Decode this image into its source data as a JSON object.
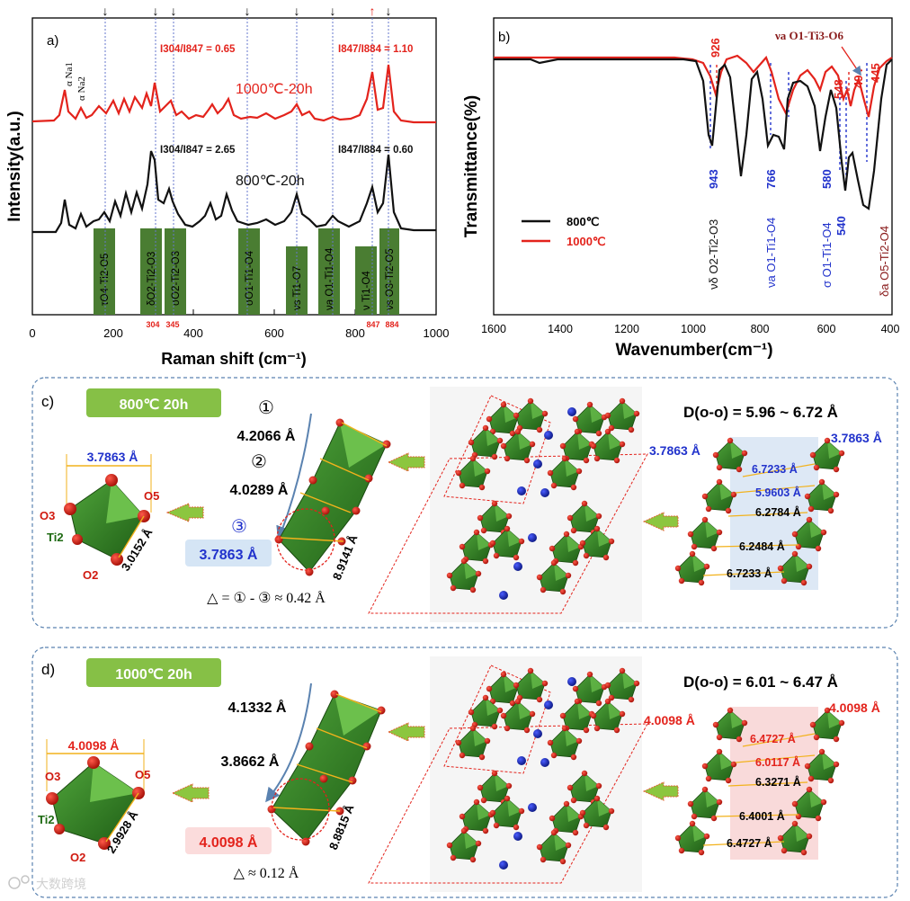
{
  "panel_a": {
    "label": "a)",
    "ylabel": "Intensity(a.u.)",
    "xlabel": "Raman shift (cm⁻¹)",
    "xticks": [
      "0",
      "200",
      "400",
      "600",
      "800",
      "1000"
    ],
    "curve_1000_label": "1000℃-20h",
    "curve_800_label": "800℃-20h",
    "ratio_1000_a": "I304/I847 = 0.65",
    "ratio_1000_b": "I847/I884 = 1.10",
    "ratio_800_a": "I304/I847 = 2.65",
    "ratio_800_b": "I847/I884 = 0.60",
    "na1": "α Na1",
    "na2": "α Na2",
    "red_ticks": [
      "304",
      "345",
      "847",
      "884"
    ],
    "bands": [
      "τO4-Ti2-O5",
      "δO2-Ti2-O3",
      "σO2-Ti2-O3",
      "σO1-Ti1-O4",
      "νs Ti1-O7",
      "νa O1-Ti1-O4",
      "ν Ti1-O4",
      "νs O3-Ti2-O5"
    ],
    "colors": {
      "red": "#e3231c",
      "black": "#111111",
      "band": "#3f7a2a",
      "dash": "#5566cc"
    }
  },
  "panel_b": {
    "label": "b)",
    "ylabel": "Transmittance(%)",
    "xlabel": "Wavenumber(cm⁻¹)",
    "xticks": [
      "1600",
      "1400",
      "1200",
      "1000",
      "800",
      "600",
      "400"
    ],
    "legend": [
      "800℃",
      "1000℃"
    ],
    "peaks_red": [
      "926",
      "548",
      "494",
      "445"
    ],
    "peaks_blue": [
      "943",
      "766",
      "580",
      "540"
    ],
    "mode_top": "νa O1-Ti3-O6",
    "assign": [
      "νδ O2-Ti2-O3",
      "νa O1-Ti1-O4",
      "σ O1-Ti1-O4",
      "δa O5-Ti2-O4"
    ]
  },
  "panel_c": {
    "label": "c)",
    "temp": "800℃ 20h",
    "oct_top": "3.7863 Å",
    "oct_side": "3.0152 Å",
    "atoms": [
      "O3",
      "O5",
      "Ti2",
      "O2"
    ],
    "circ": [
      "①",
      "②",
      "③"
    ],
    "d1": "4.2066 Å",
    "d2": "4.0289 Å",
    "d3": "3.7863 Å",
    "diag": "8.9141 Å",
    "delta": "△ = ① - ③ ≈ 0.42 Å",
    "drange": "D(o-o) = 5.96 ~ 6.72 Å",
    "edge_l": "3.7863 Å",
    "edge_r": "3.7863 Å",
    "dists": [
      "6.7233 Å",
      "5.9603 Å",
      "6.2784 Å",
      "6.2484 Å",
      "6.7233 Å"
    ]
  },
  "panel_d": {
    "label": "d)",
    "temp": "1000℃ 20h",
    "oct_top": "4.0098 Å",
    "oct_side": "2.9928 Å",
    "atoms": [
      "O3",
      "O5",
      "Ti2",
      "O2"
    ],
    "d1": "4.1332 Å",
    "d2": "3.8662 Å",
    "d3": "4.0098 Å",
    "diag": "8.8815 Å",
    "delta": "△ ≈ 0.12 Å",
    "drange": "D(o-o) = 6.01 ~ 6.47 Å",
    "edge_l": "4.0098 Å",
    "edge_r": "4.0098 Å",
    "dists": [
      "6.4727 Å",
      "6.0117 Å",
      "6.3271 Å",
      "6.4001 Å",
      "6.4727 Å"
    ]
  },
  "watermark": "大数跨境"
}
